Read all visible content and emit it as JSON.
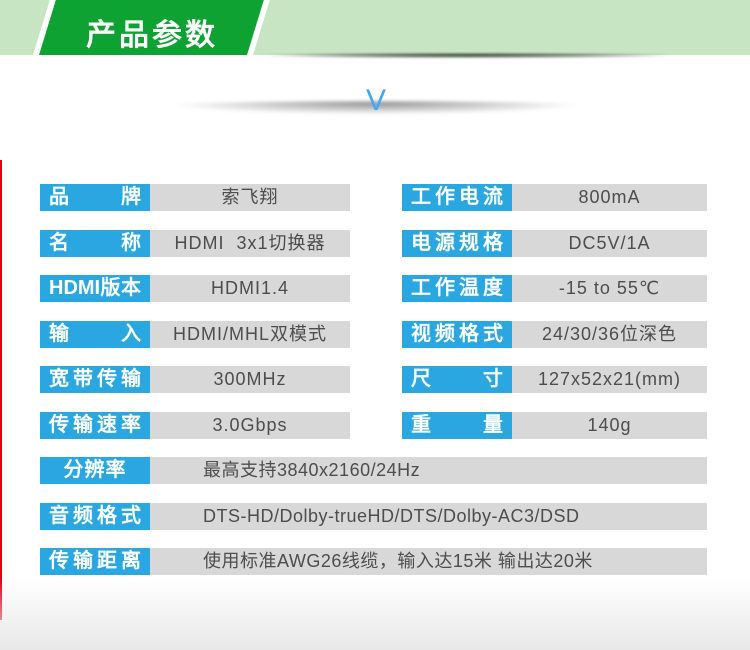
{
  "banner": {
    "title": "产品参数",
    "dark_green": "#0da232",
    "light_green": "#c8e5c3"
  },
  "divider": {
    "chevron": "V",
    "chevron_color": "#3fa9f5"
  },
  "colors": {
    "label_bg": "#2aa7e1",
    "label_text": "#ffffff",
    "value_bg": "#d8d8d8",
    "value_text": "#4d4d4d",
    "edge_line_red": "#e60012"
  },
  "spec_table": {
    "left_column": [
      {
        "label": "品牌",
        "value": "索飞翔"
      },
      {
        "label": "名称",
        "value": "HDMI  3x1切换器"
      },
      {
        "label": "HDMI版本",
        "value": "HDMI1.4"
      },
      {
        "label": "输入",
        "value": "HDMI/MHL双模式"
      },
      {
        "label": "宽带传输",
        "value": "300MHz"
      },
      {
        "label": "传输速率",
        "value": "3.0Gbps"
      }
    ],
    "right_column": [
      {
        "label": "工作电流",
        "value": "800mA"
      },
      {
        "label": "电源规格",
        "value": "DC5V/1A"
      },
      {
        "label": "工作温度",
        "value": "-15 to 55℃"
      },
      {
        "label": "视频格式",
        "value": "24/30/36位深色"
      },
      {
        "label": "尺寸",
        "value": "127x52x21(mm)"
      },
      {
        "label": "重量",
        "value": "140g"
      }
    ],
    "full_width": [
      {
        "label": "分辨率",
        "value": "最高支持3840x2160/24Hz"
      },
      {
        "label": "音频格式",
        "value": "DTS-HD/Dolby-trueHD/DTS/Dolby-AC3/DSD"
      },
      {
        "label": "传输距离",
        "value": "使用标准AWG26线缆，输入达15米 输出达20米"
      }
    ]
  }
}
